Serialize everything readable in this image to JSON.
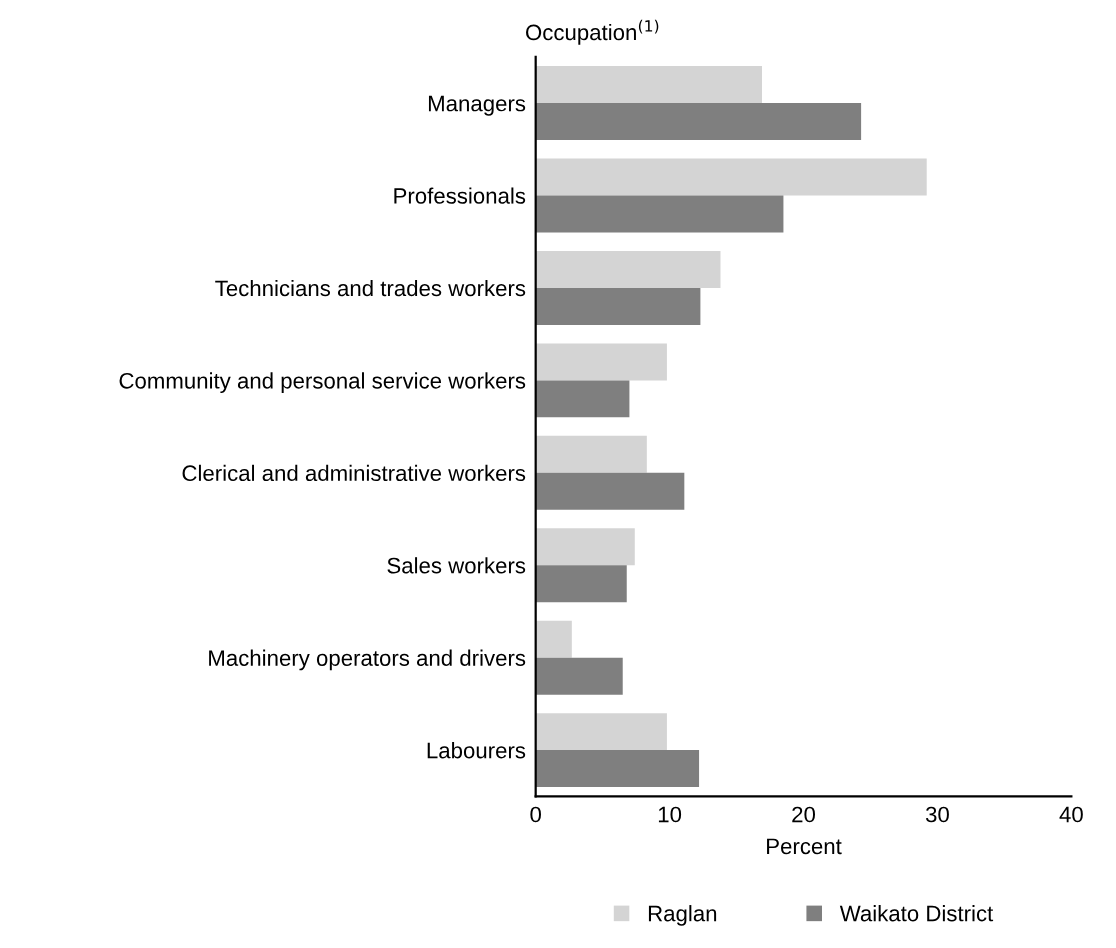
{
  "chart_data": {
    "type": "bar",
    "orientation": "horizontal",
    "title": "Occupation$^{(1)}$",
    "xlabel": "Percent",
    "categories": [
      "Managers",
      "Professionals",
      "Technicians and trades workers",
      "Community and personal service workers",
      "Clerical and administrative workers",
      "Sales workers",
      "Machinery operators and drivers",
      "Labourers"
    ],
    "series": [
      {
        "name": "Raglan",
        "color": "#d4d4d4",
        "values": [
          16.9,
          29.2,
          13.8,
          9.8,
          8.3,
          7.4,
          2.7,
          9.8
        ]
      },
      {
        "name": "Waikato District",
        "color": "#7f7f7f",
        "values": [
          24.3,
          18.5,
          12.3,
          7.0,
          11.1,
          6.8,
          6.5,
          12.2
        ]
      }
    ],
    "xlim": [
      0,
      40
    ],
    "xticks": [
      0,
      10,
      20,
      30,
      40
    ],
    "grid": false,
    "legend": "bottom"
  }
}
